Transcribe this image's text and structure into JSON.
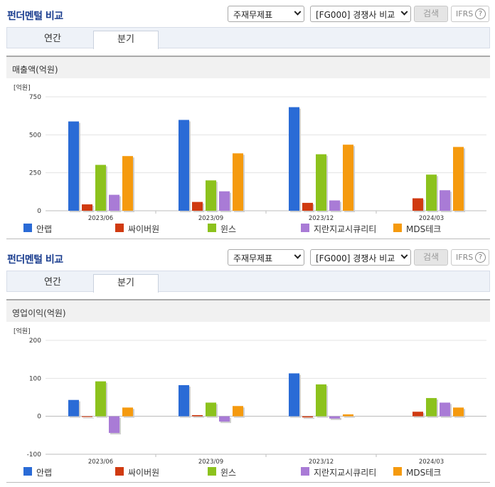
{
  "sections": [
    {
      "title": "펀더멘털 비교",
      "select1": "주재무제표",
      "select2": "[FG000] 경쟁사 비교",
      "search_label": "검색",
      "ifrs_label": "IFRS",
      "help_glyph": "?",
      "tabs": [
        "연간",
        "분기"
      ],
      "active_tab": "분기",
      "metric": "매출액(억원)"
    },
    {
      "title": "펀더멘털 비교",
      "select1": "주재무제표",
      "select2": "[FG000] 경쟁사 비교",
      "search_label": "검색",
      "ifrs_label": "IFRS",
      "help_glyph": "?",
      "tabs": [
        "연간",
        "분기"
      ],
      "active_tab": "분기",
      "metric": "영업이익(억원)"
    }
  ],
  "colors": {
    "안랩": "#2a6bd6",
    "싸이버원": "#d03a10",
    "윈스": "#8cc21d",
    "지란지교시큐리티": "#a97bd6",
    "MDS테크": "#f59a0e"
  },
  "chart_data": [
    {
      "type": "bar",
      "unit_label": "[억원]",
      "categories": [
        "2023/06",
        "2023/09",
        "2023/12",
        "2024/03"
      ],
      "ylim": [
        0,
        750
      ],
      "yticks": [
        0,
        250,
        500,
        750
      ],
      "grid": true,
      "legend": "bottom",
      "series": [
        {
          "name": "안랩",
          "values": [
            588,
            598,
            682,
            null
          ]
        },
        {
          "name": "싸이버원",
          "values": [
            42,
            58,
            52,
            82
          ]
        },
        {
          "name": "윈스",
          "values": [
            302,
            200,
            372,
            238
          ]
        },
        {
          "name": "지란지교시큐리티",
          "values": [
            105,
            128,
            68,
            135
          ]
        },
        {
          "name": "MDS테크",
          "values": [
            360,
            378,
            435,
            420
          ]
        }
      ]
    },
    {
      "type": "bar",
      "unit_label": "[억원]",
      "categories": [
        "2023/06",
        "2023/09",
        "2023/12",
        "2024/03"
      ],
      "ylim": [
        -100,
        200
      ],
      "yticks": [
        -100,
        0,
        100,
        200
      ],
      "grid": true,
      "legend": "bottom",
      "series": [
        {
          "name": "안랩",
          "values": [
            43,
            82,
            113,
            null
          ]
        },
        {
          "name": "싸이버원",
          "values": [
            -2,
            3,
            -3,
            12
          ]
        },
        {
          "name": "윈스",
          "values": [
            92,
            36,
            84,
            48
          ]
        },
        {
          "name": "지란지교시큐리티",
          "values": [
            -44,
            -14,
            -6,
            36
          ]
        },
        {
          "name": "MDS테크",
          "values": [
            23,
            27,
            5,
            23
          ]
        }
      ]
    }
  ]
}
